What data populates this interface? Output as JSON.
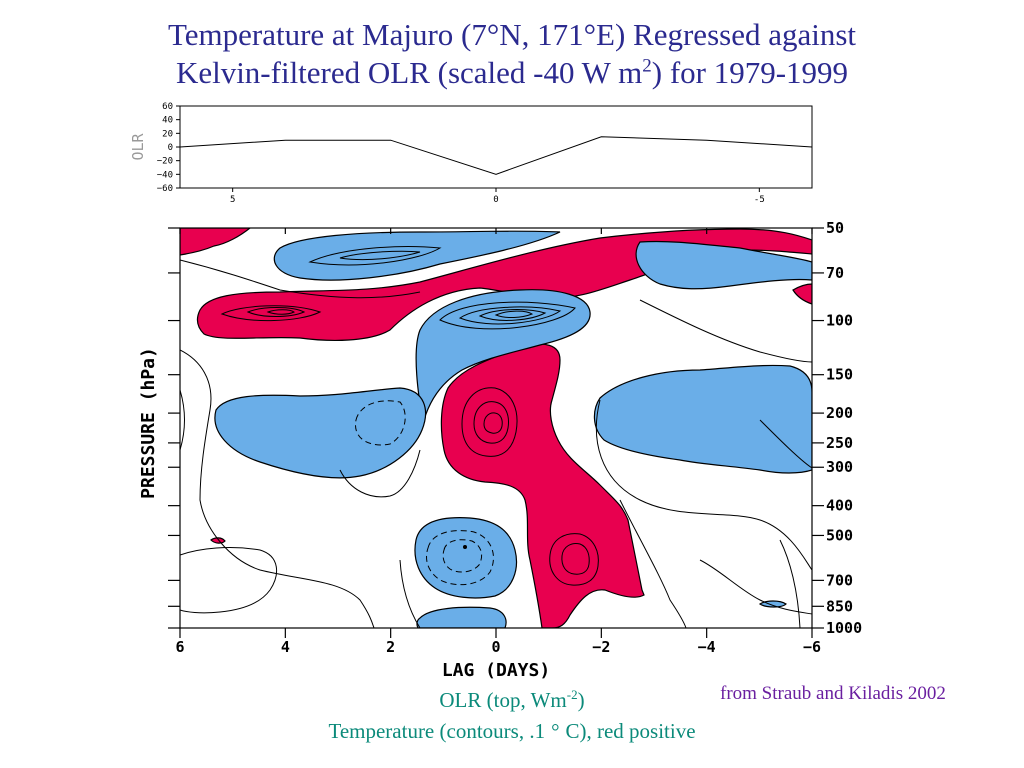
{
  "title": {
    "line1": "Temperature at Majuro (7°N, 171°E) Regressed against",
    "line2_pre": "Kelvin-filtered OLR (scaled -40 W m",
    "line2_sup": "2",
    "line2_post": ") for 1979-1999"
  },
  "colors": {
    "title": "#2b2a8f",
    "positive_fill": "#e8004f",
    "negative_fill": "#6aaee8",
    "caption": "#0b8a7a",
    "source": "#6a1fa0"
  },
  "chart_data": [
    {
      "type": "line",
      "ylabel": "OLR",
      "x": [
        6,
        4,
        2,
        0,
        -2,
        -4,
        -6
      ],
      "y": [
        0,
        10,
        10,
        -40,
        15,
        10,
        0
      ],
      "xlim": [
        6,
        -6
      ],
      "ylim": [
        -60,
        60
      ],
      "xticks": [
        5,
        0,
        -5
      ],
      "yticks": [
        60,
        40,
        20,
        0,
        -20,
        -40,
        -60
      ],
      "xtick_labels": [
        "5",
        "0",
        "-5"
      ],
      "ytick_labels": [
        "60",
        "40",
        "20",
        "0",
        "−20",
        "−40",
        "−60"
      ]
    },
    {
      "type": "heatmap",
      "xlabel": "LAG (DAYS)",
      "ylabel": "PRESSURE (hPa)",
      "x_ticks": [
        6,
        4,
        2,
        0,
        -2,
        -4,
        -6
      ],
      "x_tick_labels": [
        "6",
        "4",
        "2",
        "0",
        "−2",
        "−4",
        "−6"
      ],
      "y_ticks": [
        50,
        70,
        100,
        150,
        200,
        250,
        300,
        400,
        500,
        700,
        850,
        1000
      ],
      "y_tick_labels": [
        "50",
        "70",
        "100",
        "150",
        "200",
        "250",
        "300",
        "400",
        "500",
        "700",
        "850",
        "1000"
      ],
      "xlim": [
        6,
        -6
      ],
      "ylim": [
        50,
        1000
      ],
      "ylog": true,
      "contour_interval_C": 0.1,
      "fill": "red positive, blue negative"
    }
  ],
  "captions": {
    "olr_pre": "OLR (top, Wm",
    "olr_sup": "-2",
    "olr_post": ")",
    "temp_pre": "Temperature (contours, .1",
    "temp_deg": "°",
    "temp_post": "C), red positive"
  },
  "source": "from Straub and Kiladis 2002"
}
